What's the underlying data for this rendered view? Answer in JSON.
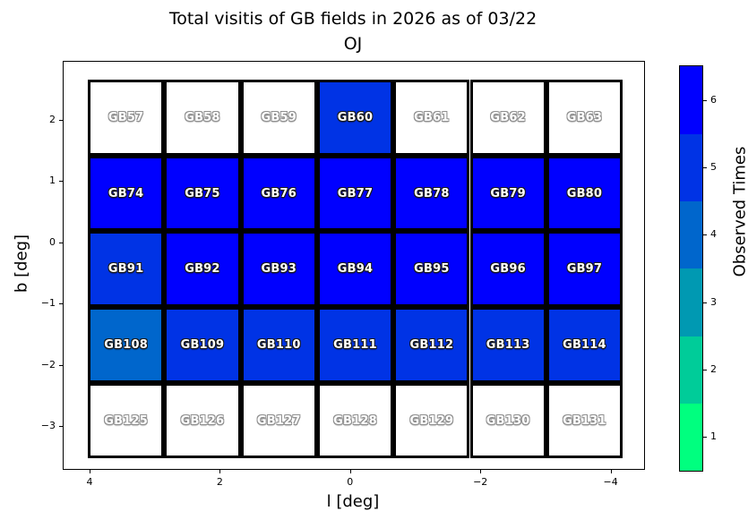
{
  "figure": {
    "title_line1": "Total visitis of GB fields in 2026 as of 03/22",
    "title_line2": "OJ"
  },
  "chart_data": {
    "type": "heatmap",
    "title": "Total visitis of GB fields in 2026 as of 03/22\nOJ",
    "xlabel": "l [deg]",
    "ylabel": "b [deg]",
    "x_ticks": [
      4,
      2,
      0,
      -2,
      -4
    ],
    "y_ticks": [
      2,
      1,
      0,
      -1,
      -2,
      -3
    ],
    "xlim": [
      4.4,
      -4.52
    ],
    "ylim": [
      -3.7,
      2.95
    ],
    "x_axis_inverted": true,
    "grid_on": false,
    "colorbar": {
      "label": "Observed Times",
      "ticks": [
        1,
        2,
        3,
        4,
        5,
        6
      ],
      "colors": [
        "#00FF7F",
        "#00CC99",
        "#0099B2",
        "#0066CC",
        "#0033E5",
        "#0000FF"
      ]
    },
    "unobserved_color": "#FFFFFF",
    "cell_border_color": "#000000",
    "rows": [
      {
        "fields": [
          {
            "name": "GB57",
            "visits": 0
          },
          {
            "name": "GB58",
            "visits": 0
          },
          {
            "name": "GB59",
            "visits": 0
          },
          {
            "name": "GB60",
            "visits": 5
          },
          {
            "name": "GB61",
            "visits": 0
          },
          {
            "name": "GB62",
            "visits": 0
          },
          {
            "name": "GB63",
            "visits": 0
          }
        ]
      },
      {
        "fields": [
          {
            "name": "GB74",
            "visits": 6
          },
          {
            "name": "GB75",
            "visits": 6
          },
          {
            "name": "GB76",
            "visits": 6
          },
          {
            "name": "GB77",
            "visits": 6
          },
          {
            "name": "GB78",
            "visits": 6
          },
          {
            "name": "GB79",
            "visits": 6
          },
          {
            "name": "GB80",
            "visits": 6
          }
        ]
      },
      {
        "fields": [
          {
            "name": "GB91",
            "visits": 5
          },
          {
            "name": "GB92",
            "visits": 6
          },
          {
            "name": "GB93",
            "visits": 6
          },
          {
            "name": "GB94",
            "visits": 6
          },
          {
            "name": "GB95",
            "visits": 6
          },
          {
            "name": "GB96",
            "visits": 6
          },
          {
            "name": "GB97",
            "visits": 6
          }
        ]
      },
      {
        "fields": [
          {
            "name": "GB108",
            "visits": 4
          },
          {
            "name": "GB109",
            "visits": 5
          },
          {
            "name": "GB110",
            "visits": 5
          },
          {
            "name": "GB111",
            "visits": 5
          },
          {
            "name": "GB112",
            "visits": 5
          },
          {
            "name": "GB113",
            "visits": 5
          },
          {
            "name": "GB114",
            "visits": 5
          }
        ]
      },
      {
        "fields": [
          {
            "name": "GB125",
            "visits": 0
          },
          {
            "name": "GB126",
            "visits": 0
          },
          {
            "name": "GB127",
            "visits": 0
          },
          {
            "name": "GB128",
            "visits": 0
          },
          {
            "name": "GB129",
            "visits": 0
          },
          {
            "name": "GB130",
            "visits": 0
          },
          {
            "name": "GB131",
            "visits": 0
          }
        ]
      }
    ]
  }
}
